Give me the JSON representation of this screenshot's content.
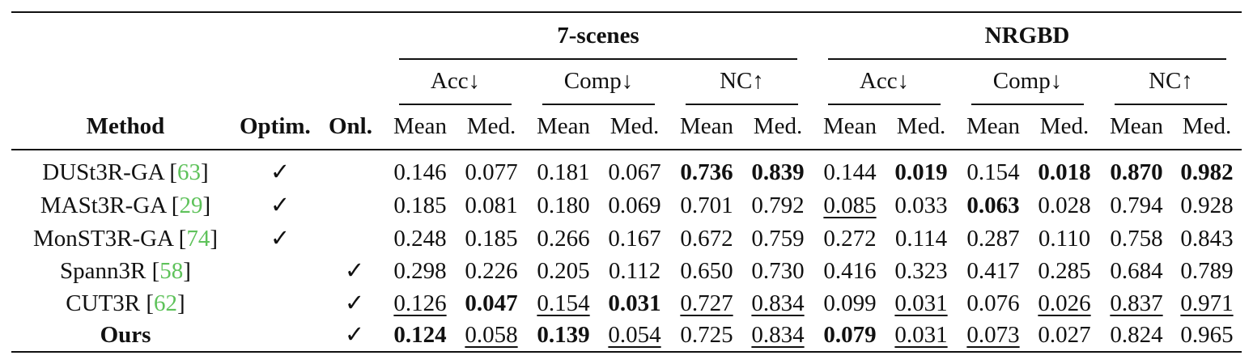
{
  "table": {
    "groups": [
      "7-scenes",
      "NRGBD"
    ],
    "metrics": [
      "Acc↓",
      "Comp↓",
      "NC↑",
      "Acc↓",
      "Comp↓",
      "NC↑"
    ],
    "stats": [
      "Mean",
      "Med.",
      "Mean",
      "Med.",
      "Mean",
      "Med.",
      "Mean",
      "Med.",
      "Mean",
      "Med.",
      "Mean",
      "Med."
    ],
    "headers": {
      "method": "Method",
      "optim": "Optim.",
      "onl": "Onl."
    },
    "check_mark": "✓",
    "rows": [
      {
        "name": "DUSt3R-GA",
        "ref": "63",
        "optim": true,
        "onl": false,
        "values": [
          "0.146",
          "0.077",
          "0.181",
          "0.067",
          "0.736",
          "0.839",
          "0.144",
          "0.019",
          "0.154",
          "0.018",
          "0.870",
          "0.982"
        ],
        "bold": [
          4,
          5,
          7,
          9,
          10,
          11
        ],
        "underline": []
      },
      {
        "name": "MASt3R-GA",
        "ref": "29",
        "optim": true,
        "onl": false,
        "values": [
          "0.185",
          "0.081",
          "0.180",
          "0.069",
          "0.701",
          "0.792",
          "0.085",
          "0.033",
          "0.063",
          "0.028",
          "0.794",
          "0.928"
        ],
        "bold": [
          8
        ],
        "underline": [
          6
        ]
      },
      {
        "name": "MonST3R-GA",
        "ref": "74",
        "optim": true,
        "onl": false,
        "values": [
          "0.248",
          "0.185",
          "0.266",
          "0.167",
          "0.672",
          "0.759",
          "0.272",
          "0.114",
          "0.287",
          "0.110",
          "0.758",
          "0.843"
        ],
        "bold": [],
        "underline": []
      },
      {
        "name": "Spann3R",
        "ref": "58",
        "optim": false,
        "onl": true,
        "values": [
          "0.298",
          "0.226",
          "0.205",
          "0.112",
          "0.650",
          "0.730",
          "0.416",
          "0.323",
          "0.417",
          "0.285",
          "0.684",
          "0.789"
        ],
        "bold": [],
        "underline": []
      },
      {
        "name": "CUT3R",
        "ref": "62",
        "optim": false,
        "onl": true,
        "values": [
          "0.126",
          "0.047",
          "0.154",
          "0.031",
          "0.727",
          "0.834",
          "0.099",
          "0.031",
          "0.076",
          "0.026",
          "0.837",
          "0.971"
        ],
        "bold": [
          1,
          3
        ],
        "underline": [
          0,
          2,
          4,
          5,
          7,
          9,
          10,
          11
        ]
      },
      {
        "name": "Ours",
        "ref": "",
        "optim": false,
        "onl": true,
        "name_bold": true,
        "values": [
          "0.124",
          "0.058",
          "0.139",
          "0.054",
          "0.725",
          "0.834",
          "0.079",
          "0.031",
          "0.073",
          "0.027",
          "0.824",
          "0.965"
        ],
        "bold": [
          0,
          2,
          6
        ],
        "underline": [
          1,
          3,
          5,
          7,
          8
        ]
      }
    ]
  }
}
